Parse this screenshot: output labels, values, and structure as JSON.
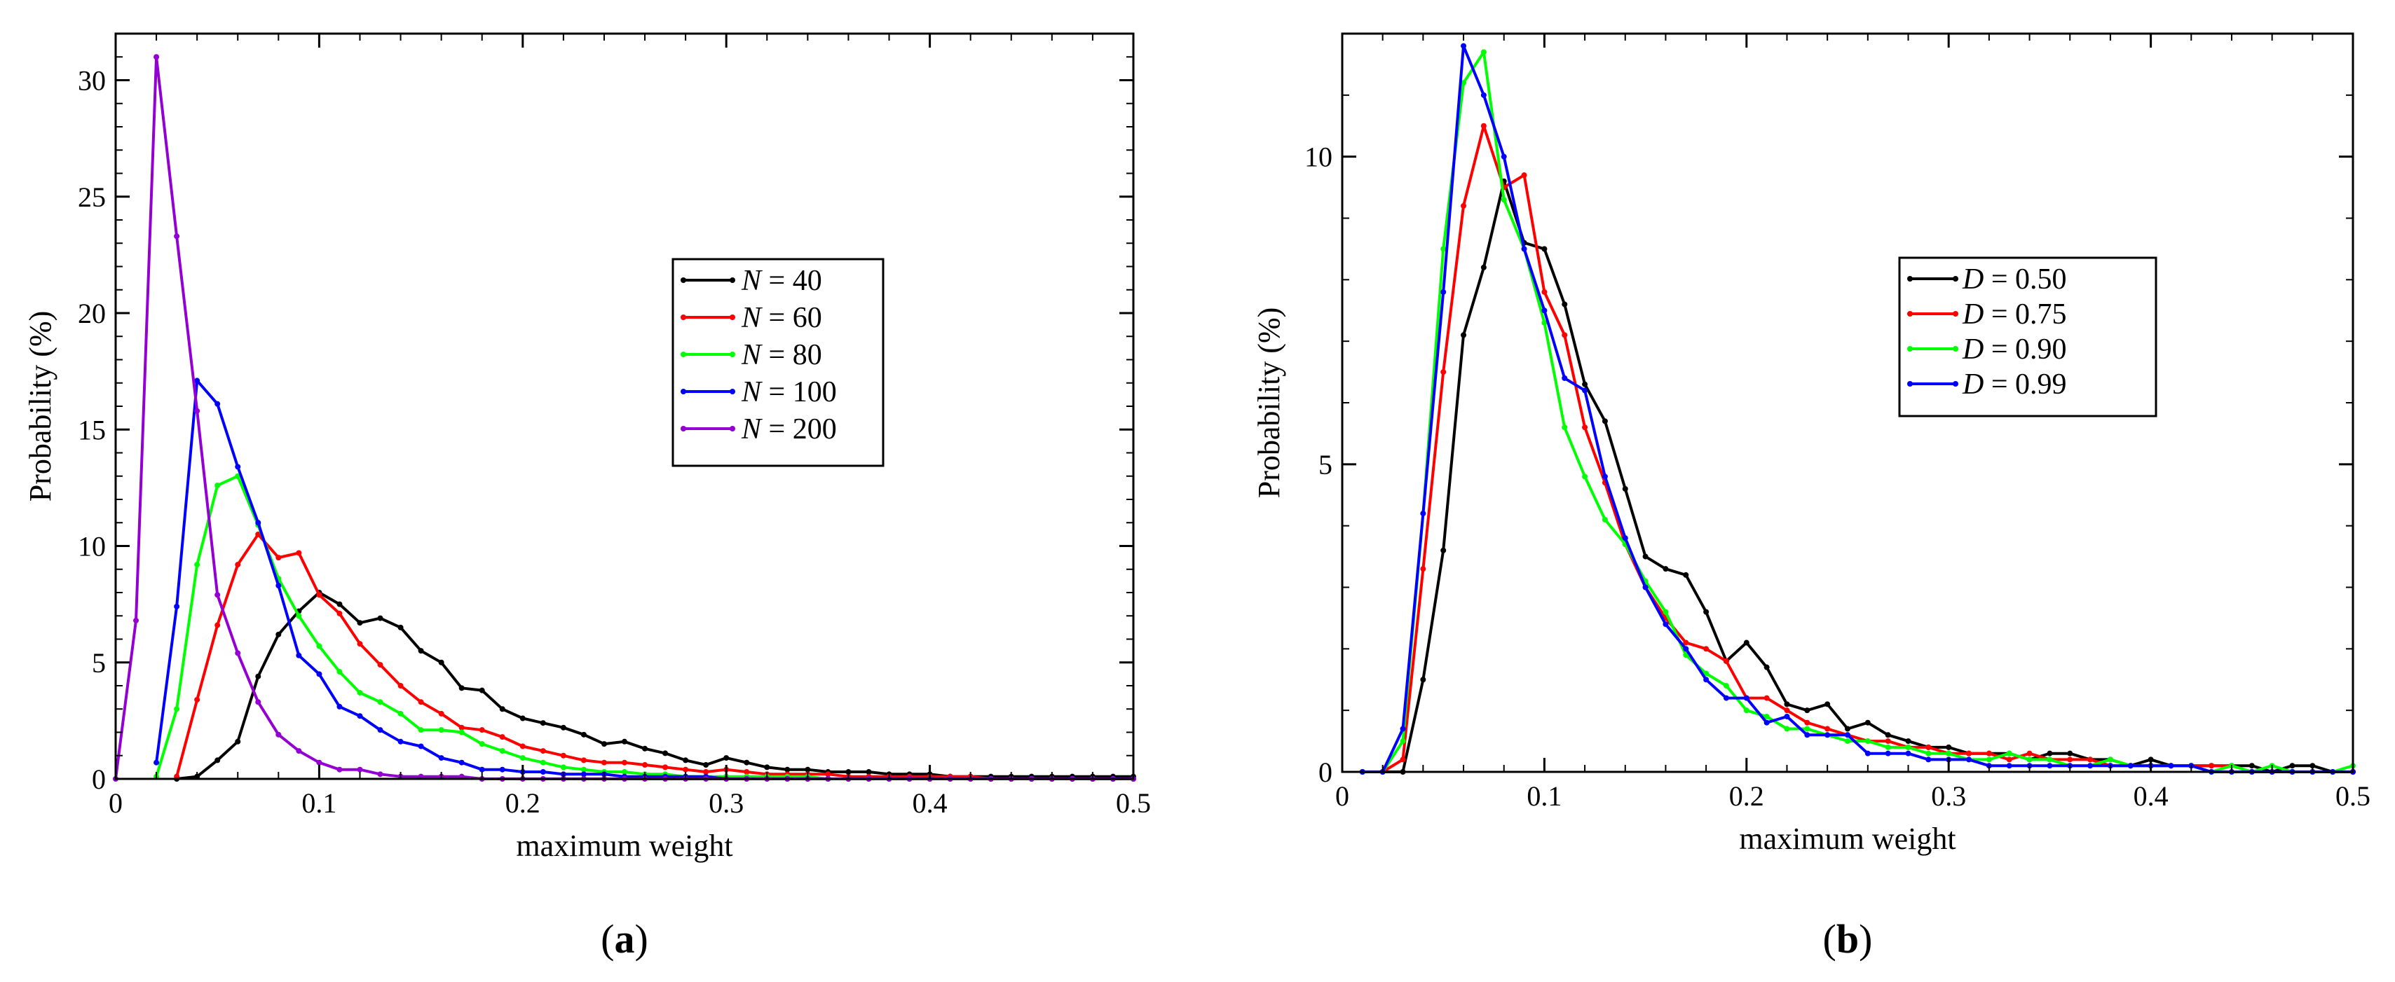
{
  "chart_data": [
    {
      "type": "line",
      "panel_label": "a",
      "xlabel": "maximum weight",
      "ylabel": "Probability (%)",
      "xlim": [
        0,
        0.5
      ],
      "ylim": [
        0,
        32
      ],
      "x_ticks": [
        0,
        0.1,
        0.2,
        0.3,
        0.4,
        0.5
      ],
      "x_tick_labels": [
        "0",
        "0.1",
        "0.2",
        "0.3",
        "0.4",
        "0.5"
      ],
      "y_ticks": [
        0,
        5,
        10,
        15,
        20,
        25,
        30
      ],
      "y_tick_labels": [
        "0",
        "5",
        "10",
        "15",
        "20",
        "25",
        "30"
      ],
      "legend_placement": "center-right",
      "series": [
        {
          "name": "N = 40",
          "var": "N",
          "value_text": "40",
          "color": "#000000",
          "x": [
            0.03,
            0.04,
            0.05,
            0.06,
            0.07,
            0.08,
            0.09,
            0.1,
            0.11,
            0.12,
            0.13,
            0.14,
            0.15,
            0.16,
            0.17,
            0.18,
            0.19,
            0.2,
            0.21,
            0.22,
            0.23,
            0.24,
            0.25,
            0.26,
            0.27,
            0.28,
            0.29,
            0.3,
            0.31,
            0.32,
            0.33,
            0.34,
            0.35,
            0.36,
            0.37,
            0.38,
            0.39,
            0.4,
            0.41,
            0.42,
            0.43,
            0.44,
            0.45,
            0.46,
            0.47,
            0.48,
            0.49,
            0.5
          ],
          "y": [
            0,
            0.1,
            0.8,
            1.6,
            4.4,
            6.2,
            7.2,
            8.0,
            7.5,
            6.7,
            6.9,
            6.5,
            5.5,
            5.0,
            3.9,
            3.8,
            3.0,
            2.6,
            2.4,
            2.2,
            1.9,
            1.5,
            1.6,
            1.3,
            1.1,
            0.8,
            0.6,
            0.9,
            0.7,
            0.5,
            0.4,
            0.4,
            0.3,
            0.3,
            0.3,
            0.2,
            0.2,
            0.2,
            0.1,
            0.1,
            0.1,
            0.1,
            0.1,
            0.1,
            0.1,
            0.1,
            0.1,
            0.1
          ]
        },
        {
          "name": "N = 60",
          "var": "N",
          "value_text": "60",
          "color": "#ff0000",
          "x": [
            0.03,
            0.04,
            0.05,
            0.06,
            0.07,
            0.08,
            0.09,
            0.1,
            0.11,
            0.12,
            0.13,
            0.14,
            0.15,
            0.16,
            0.17,
            0.18,
            0.19,
            0.2,
            0.21,
            0.22,
            0.23,
            0.24,
            0.25,
            0.26,
            0.27,
            0.28,
            0.29,
            0.3,
            0.31,
            0.32,
            0.33,
            0.34,
            0.35,
            0.36,
            0.37,
            0.38,
            0.39,
            0.4,
            0.41,
            0.42,
            0.43,
            0.44,
            0.45,
            0.46,
            0.47,
            0.48,
            0.49,
            0.5
          ],
          "y": [
            0.1,
            3.4,
            6.6,
            9.2,
            10.5,
            9.5,
            9.7,
            7.9,
            7.1,
            5.8,
            4.9,
            4.0,
            3.3,
            2.8,
            2.2,
            2.1,
            1.8,
            1.4,
            1.2,
            1.0,
            0.8,
            0.7,
            0.7,
            0.6,
            0.5,
            0.4,
            0.3,
            0.4,
            0.3,
            0.2,
            0.2,
            0.2,
            0.2,
            0.1,
            0.1,
            0.1,
            0.1,
            0.1,
            0.1,
            0.1,
            0.0,
            0.0,
            0.0,
            0.0,
            0.0,
            0.0,
            0.0,
            0.0
          ]
        },
        {
          "name": "N = 80",
          "var": "N",
          "value_text": "80",
          "color": "#00ff00",
          "x": [
            0.02,
            0.03,
            0.04,
            0.05,
            0.06,
            0.07,
            0.08,
            0.09,
            0.1,
            0.11,
            0.12,
            0.13,
            0.14,
            0.15,
            0.16,
            0.17,
            0.18,
            0.19,
            0.2,
            0.21,
            0.22,
            0.23,
            0.24,
            0.25,
            0.26,
            0.27,
            0.28,
            0.29,
            0.3,
            0.31,
            0.32,
            0.33,
            0.34,
            0.35,
            0.36,
            0.37,
            0.38,
            0.39,
            0.4,
            0.41,
            0.42,
            0.43,
            0.44,
            0.45,
            0.46,
            0.47,
            0.48,
            0.49,
            0.5
          ],
          "y": [
            0.1,
            3.0,
            9.2,
            12.6,
            13.0,
            10.9,
            8.6,
            7.0,
            5.7,
            4.6,
            3.7,
            3.3,
            2.8,
            2.1,
            2.1,
            2.0,
            1.5,
            1.2,
            0.9,
            0.7,
            0.5,
            0.4,
            0.3,
            0.3,
            0.2,
            0.2,
            0.1,
            0.1,
            0.1,
            0.1,
            0.1,
            0.1,
            0.1,
            0.0,
            0.0,
            0.0,
            0.0,
            0.0,
            0.0,
            0.0,
            0.0,
            0.0,
            0.0,
            0.0,
            0.0,
            0.0,
            0.0,
            0.0,
            0.0
          ]
        },
        {
          "name": "N = 100",
          "var": "N",
          "value_text": "100",
          "color": "#0000ff",
          "x": [
            0.02,
            0.03,
            0.04,
            0.05,
            0.06,
            0.07,
            0.08,
            0.09,
            0.1,
            0.11,
            0.12,
            0.13,
            0.14,
            0.15,
            0.16,
            0.17,
            0.18,
            0.19,
            0.2,
            0.21,
            0.22,
            0.23,
            0.24,
            0.25,
            0.26,
            0.27,
            0.28,
            0.29,
            0.3,
            0.31,
            0.32,
            0.33,
            0.34,
            0.35,
            0.36,
            0.37,
            0.38,
            0.39,
            0.4,
            0.41,
            0.42,
            0.43,
            0.44,
            0.45,
            0.46,
            0.47,
            0.48,
            0.49,
            0.5
          ],
          "y": [
            0.7,
            7.4,
            17.1,
            16.1,
            13.4,
            11.0,
            8.3,
            5.3,
            4.5,
            3.1,
            2.7,
            2.1,
            1.6,
            1.4,
            0.9,
            0.7,
            0.4,
            0.4,
            0.3,
            0.3,
            0.2,
            0.2,
            0.2,
            0.1,
            0.1,
            0.1,
            0.1,
            0.1,
            0.0,
            0.0,
            0.0,
            0.0,
            0.0,
            0.0,
            0.0,
            0.0,
            0.0,
            0.0,
            0.0,
            0.0,
            0.0,
            0.0,
            0.0,
            0.0,
            0.0,
            0.0,
            0.0,
            0.0,
            0.0
          ]
        },
        {
          "name": "N = 200",
          "var": "N",
          "value_text": "200",
          "color": "#9400d3",
          "x": [
            0.0,
            0.01,
            0.02,
            0.03,
            0.04,
            0.05,
            0.06,
            0.07,
            0.08,
            0.09,
            0.1,
            0.11,
            0.12,
            0.13,
            0.14,
            0.15,
            0.16,
            0.17,
            0.18,
            0.19,
            0.2,
            0.21,
            0.22,
            0.23,
            0.24,
            0.25,
            0.26,
            0.27,
            0.28,
            0.29,
            0.3,
            0.31,
            0.32,
            0.33,
            0.34,
            0.35,
            0.36,
            0.37,
            0.38,
            0.39,
            0.4,
            0.41,
            0.42,
            0.43,
            0.44,
            0.45,
            0.46,
            0.47,
            0.48,
            0.49,
            0.5
          ],
          "y": [
            0.0,
            6.8,
            31.0,
            23.3,
            15.8,
            7.9,
            5.4,
            3.3,
            1.9,
            1.2,
            0.7,
            0.4,
            0.4,
            0.2,
            0.1,
            0.1,
            0.1,
            0.1,
            0.0,
            0.0,
            0.0,
            0.0,
            0.0,
            0.0,
            0.0,
            0.0,
            0.0,
            0.0,
            0.0,
            0.0,
            0.0,
            0.0,
            0.0,
            0.0,
            0.0,
            0.0,
            0.0,
            0.0,
            0.0,
            0.0,
            0.0,
            0.0,
            0.0,
            0.0,
            0.0,
            0.0,
            0.0,
            0.0,
            0.0,
            0.0,
            0.0
          ]
        }
      ]
    },
    {
      "type": "line",
      "panel_label": "b",
      "xlabel": "maximum weight",
      "ylabel": "Probability (%)",
      "xlim": [
        0,
        0.5
      ],
      "ylim": [
        0,
        12
      ],
      "x_ticks": [
        0,
        0.1,
        0.2,
        0.3,
        0.4,
        0.5
      ],
      "x_tick_labels": [
        "0",
        "0.1",
        "0.2",
        "0.3",
        "0.4",
        "0.5"
      ],
      "y_ticks": [
        0,
        5,
        10
      ],
      "y_tick_labels": [
        "0",
        "5",
        "10"
      ],
      "legend_placement": "center-right",
      "series": [
        {
          "name": "D = 0.50",
          "var": "D",
          "value_text": "0.50",
          "color": "#000000",
          "x": [
            0.01,
            0.02,
            0.03,
            0.04,
            0.05,
            0.06,
            0.07,
            0.08,
            0.09,
            0.1,
            0.11,
            0.12,
            0.13,
            0.14,
            0.15,
            0.16,
            0.17,
            0.18,
            0.19,
            0.2,
            0.21,
            0.22,
            0.23,
            0.24,
            0.25,
            0.26,
            0.27,
            0.28,
            0.29,
            0.3,
            0.31,
            0.32,
            0.33,
            0.34,
            0.35,
            0.36,
            0.37,
            0.38,
            0.39,
            0.4,
            0.41,
            0.42,
            0.43,
            0.44,
            0.45,
            0.46,
            0.47,
            0.48,
            0.49,
            0.5
          ],
          "y": [
            0,
            0,
            0,
            1.5,
            3.6,
            7.1,
            8.2,
            9.6,
            8.6,
            8.5,
            7.6,
            6.3,
            5.7,
            4.6,
            3.5,
            3.3,
            3.2,
            2.6,
            1.8,
            2.1,
            1.7,
            1.1,
            1.0,
            1.1,
            0.7,
            0.8,
            0.6,
            0.5,
            0.4,
            0.4,
            0.3,
            0.3,
            0.3,
            0.2,
            0.3,
            0.3,
            0.2,
            0.2,
            0.1,
            0.2,
            0.1,
            0.1,
            0.1,
            0.1,
            0.1,
            0.0,
            0.1,
            0.1,
            0.0,
            0.0
          ]
        },
        {
          "name": "D = 0.75",
          "var": "D",
          "value_text": "0.75",
          "color": "#ff0000",
          "x": [
            0.01,
            0.02,
            0.03,
            0.04,
            0.05,
            0.06,
            0.07,
            0.08,
            0.09,
            0.1,
            0.11,
            0.12,
            0.13,
            0.14,
            0.15,
            0.16,
            0.17,
            0.18,
            0.19,
            0.2,
            0.21,
            0.22,
            0.23,
            0.24,
            0.25,
            0.26,
            0.27,
            0.28,
            0.29,
            0.3,
            0.31,
            0.32,
            0.33,
            0.34,
            0.35,
            0.36,
            0.37,
            0.38,
            0.39,
            0.4,
            0.41,
            0.42,
            0.43,
            0.44,
            0.45,
            0.46,
            0.47,
            0.48,
            0.49,
            0.5
          ],
          "y": [
            0,
            0,
            0.2,
            3.3,
            6.5,
            9.2,
            10.5,
            9.5,
            9.7,
            7.8,
            7.1,
            5.6,
            4.7,
            3.7,
            3.0,
            2.5,
            2.1,
            2.0,
            1.8,
            1.2,
            1.2,
            1.0,
            0.8,
            0.7,
            0.6,
            0.5,
            0.5,
            0.4,
            0.4,
            0.3,
            0.3,
            0.3,
            0.2,
            0.3,
            0.2,
            0.2,
            0.2,
            0.1,
            0.1,
            0.1,
            0.1,
            0.1,
            0.1,
            0.1,
            0.0,
            0.0,
            0.0,
            0.0,
            0.0,
            0.0
          ]
        },
        {
          "name": "D = 0.90",
          "var": "D",
          "value_text": "0.90",
          "color": "#00ff00",
          "x": [
            0.01,
            0.02,
            0.03,
            0.04,
            0.05,
            0.06,
            0.07,
            0.08,
            0.09,
            0.1,
            0.11,
            0.12,
            0.13,
            0.14,
            0.15,
            0.16,
            0.17,
            0.18,
            0.19,
            0.2,
            0.21,
            0.22,
            0.23,
            0.24,
            0.25,
            0.26,
            0.27,
            0.28,
            0.29,
            0.3,
            0.31,
            0.32,
            0.33,
            0.34,
            0.35,
            0.36,
            0.37,
            0.38,
            0.39,
            0.4,
            0.41,
            0.42,
            0.43,
            0.44,
            0.45,
            0.46,
            0.47,
            0.48,
            0.49,
            0.5
          ],
          "y": [
            0,
            0,
            0.5,
            4.2,
            8.5,
            11.2,
            11.7,
            9.3,
            8.5,
            7.3,
            5.6,
            4.8,
            4.1,
            3.7,
            3.1,
            2.6,
            1.9,
            1.6,
            1.4,
            1.0,
            0.9,
            0.7,
            0.7,
            0.6,
            0.5,
            0.5,
            0.4,
            0.4,
            0.3,
            0.3,
            0.2,
            0.2,
            0.3,
            0.2,
            0.2,
            0.1,
            0.1,
            0.2,
            0.1,
            0.1,
            0.1,
            0.1,
            0.0,
            0.1,
            0.0,
            0.1,
            0.0,
            0.0,
            0.0,
            0.1
          ]
        },
        {
          "name": "D = 0.99",
          "var": "D",
          "value_text": "0.99",
          "color": "#0000ff",
          "x": [
            0.01,
            0.02,
            0.03,
            0.04,
            0.05,
            0.06,
            0.07,
            0.08,
            0.09,
            0.1,
            0.11,
            0.12,
            0.13,
            0.14,
            0.15,
            0.16,
            0.17,
            0.18,
            0.19,
            0.2,
            0.21,
            0.22,
            0.23,
            0.24,
            0.25,
            0.26,
            0.27,
            0.28,
            0.29,
            0.3,
            0.31,
            0.32,
            0.33,
            0.34,
            0.35,
            0.36,
            0.37,
            0.38,
            0.39,
            0.4,
            0.41,
            0.42,
            0.43,
            0.44,
            0.45,
            0.46,
            0.47,
            0.48,
            0.49,
            0.5
          ],
          "y": [
            0,
            0,
            0.7,
            4.2,
            7.8,
            11.8,
            11.0,
            10.0,
            8.5,
            7.5,
            6.4,
            6.2,
            4.8,
            3.8,
            3.0,
            2.4,
            2.0,
            1.5,
            1.2,
            1.2,
            0.8,
            0.9,
            0.6,
            0.6,
            0.6,
            0.3,
            0.3,
            0.3,
            0.2,
            0.2,
            0.2,
            0.1,
            0.1,
            0.1,
            0.1,
            0.1,
            0.1,
            0.1,
            0.1,
            0.1,
            0.1,
            0.1,
            0.0,
            0.0,
            0.0,
            0.0,
            0.0,
            0.0,
            0.0,
            0.0
          ]
        }
      ]
    }
  ]
}
